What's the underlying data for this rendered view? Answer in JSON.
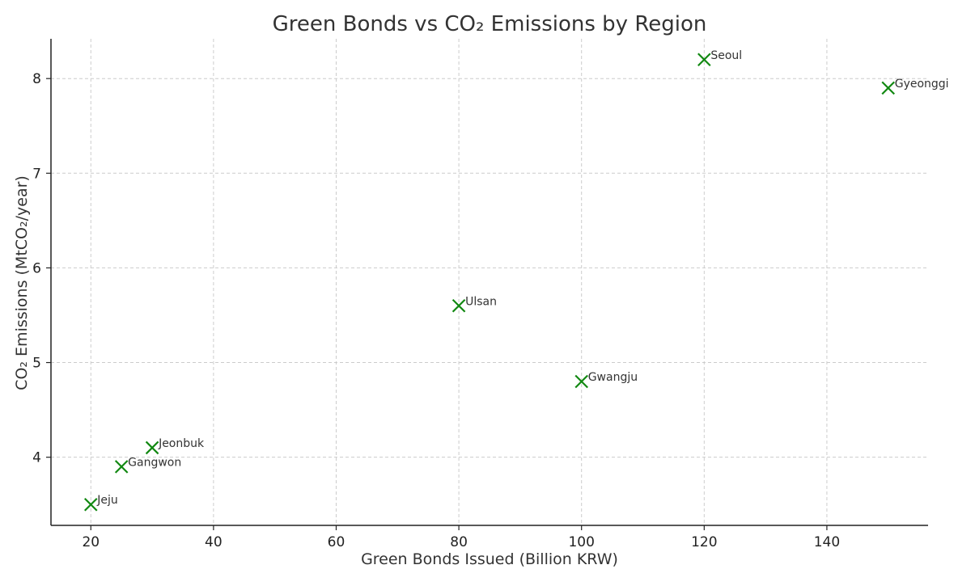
{
  "chart_data": {
    "type": "scatter",
    "title": "Green Bonds vs CO₂ Emissions by Region",
    "xlabel": "Green Bonds Issued (Billion KRW)",
    "ylabel": "CO₂ Emissions (MtCO₂/year)",
    "xlim": [
      13.5,
      156.5
    ],
    "ylim": [
      3.28,
      8.42
    ],
    "xticks": [
      20,
      40,
      60,
      80,
      100,
      120,
      140
    ],
    "yticks": [
      4,
      5,
      6,
      7,
      8
    ],
    "grid": true,
    "marker": "x",
    "marker_color": "#118811",
    "points": [
      {
        "label": "Seoul",
        "x": 120,
        "y": 8.2
      },
      {
        "label": "Gyeonggi",
        "x": 150,
        "y": 7.9
      },
      {
        "label": "Ulsan",
        "x": 80,
        "y": 5.6
      },
      {
        "label": "Gwangju",
        "x": 100,
        "y": 4.8
      },
      {
        "label": "Jeonbuk",
        "x": 30,
        "y": 4.1
      },
      {
        "label": "Gangwon",
        "x": 25,
        "y": 3.9
      },
      {
        "label": "Jeju",
        "x": 20,
        "y": 3.5
      }
    ]
  }
}
